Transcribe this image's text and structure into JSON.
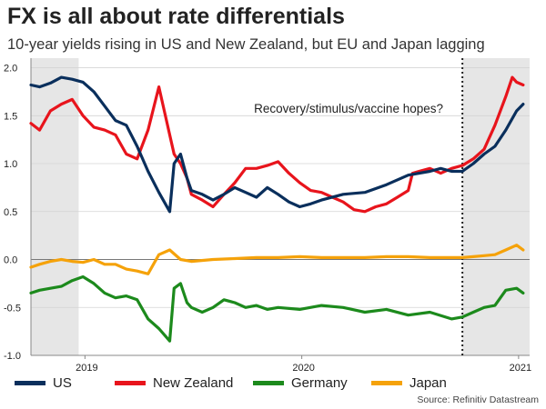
{
  "title": "FX is all about rate differentials",
  "subtitle": "10-year yields rising in US and New Zealand, but EU and Japan lagging",
  "source": "Source: Refinitiv Datastream",
  "chart_data": {
    "type": "line",
    "title": "FX is all about rate differentials",
    "xlabel": "",
    "ylabel": "",
    "ylim": [
      -1.0,
      2.1
    ],
    "xlim": [
      2018.86,
      2021.16
    ],
    "yticks": [
      -1.0,
      -0.5,
      0.0,
      0.5,
      1.0,
      1.5,
      2.0
    ],
    "ytick_labels": [
      "-1.0",
      "-0.5",
      "0.0",
      "0.5",
      "1.0",
      "1.5",
      "2.0"
    ],
    "xticks": [
      2019.0,
      2020.0,
      2021.0
    ],
    "xtick_labels": [
      "2019",
      "2020",
      "2021"
    ],
    "grid": "horizontal",
    "shaded_ranges": [
      [
        2018.86,
        2019.08
      ],
      [
        2020.85,
        2021.16
      ]
    ],
    "vline_x": 2020.85,
    "annotation": "Recovery/stimulus/vaccine hopes?",
    "series": [
      {
        "name": "US",
        "color": "#0a2f5c",
        "x": [
          2018.86,
          2018.9,
          2018.95,
          2019.0,
          2019.05,
          2019.1,
          2019.15,
          2019.2,
          2019.25,
          2019.3,
          2019.35,
          2019.4,
          2019.45,
          2019.5,
          2019.52,
          2019.55,
          2019.58,
          2019.6,
          2019.65,
          2019.7,
          2019.75,
          2019.8,
          2019.85,
          2019.9,
          2019.95,
          2020.0,
          2020.05,
          2020.1,
          2020.15,
          2020.2,
          2020.3,
          2020.4,
          2020.5,
          2020.6,
          2020.7,
          2020.75,
          2020.8,
          2020.85,
          2020.9,
          2020.95,
          2021.0,
          2021.05,
          2021.1,
          2021.13
        ],
        "values": [
          1.82,
          1.8,
          1.84,
          1.9,
          1.88,
          1.85,
          1.75,
          1.6,
          1.45,
          1.4,
          1.18,
          0.92,
          0.7,
          0.5,
          1.0,
          1.1,
          0.85,
          0.72,
          0.68,
          0.62,
          0.68,
          0.75,
          0.7,
          0.65,
          0.75,
          0.68,
          0.6,
          0.55,
          0.58,
          0.62,
          0.68,
          0.7,
          0.78,
          0.88,
          0.92,
          0.95,
          0.92,
          0.92,
          1.0,
          1.1,
          1.18,
          1.35,
          1.55,
          1.62
        ]
      },
      {
        "name": "New Zealand",
        "color": "#e8141c",
        "x": [
          2018.86,
          2018.9,
          2018.95,
          2019.0,
          2019.05,
          2019.1,
          2019.15,
          2019.2,
          2019.25,
          2019.3,
          2019.35,
          2019.4,
          2019.45,
          2019.5,
          2019.52,
          2019.55,
          2019.58,
          2019.6,
          2019.65,
          2019.7,
          2019.75,
          2019.8,
          2019.85,
          2019.9,
          2019.95,
          2020.0,
          2020.05,
          2020.1,
          2020.15,
          2020.2,
          2020.25,
          2020.3,
          2020.35,
          2020.4,
          2020.45,
          2020.5,
          2020.55,
          2020.6,
          2020.62,
          2020.65,
          2020.7,
          2020.75,
          2020.8,
          2020.85,
          2020.9,
          2020.95,
          2021.0,
          2021.05,
          2021.08,
          2021.1,
          2021.13
        ],
        "values": [
          1.42,
          1.35,
          1.55,
          1.62,
          1.67,
          1.5,
          1.38,
          1.35,
          1.3,
          1.1,
          1.05,
          1.35,
          1.8,
          1.3,
          1.1,
          1.0,
          0.85,
          0.68,
          0.62,
          0.55,
          0.68,
          0.8,
          0.95,
          0.95,
          0.98,
          1.02,
          0.9,
          0.8,
          0.72,
          0.7,
          0.65,
          0.6,
          0.52,
          0.5,
          0.55,
          0.58,
          0.65,
          0.72,
          0.9,
          0.92,
          0.95,
          0.9,
          0.95,
          0.98,
          1.05,
          1.15,
          1.4,
          1.7,
          1.9,
          1.85,
          1.82
        ]
      },
      {
        "name": "Germany",
        "color": "#1c8a1c",
        "x": [
          2018.86,
          2018.9,
          2018.95,
          2019.0,
          2019.05,
          2019.1,
          2019.15,
          2019.2,
          2019.25,
          2019.3,
          2019.35,
          2019.4,
          2019.45,
          2019.5,
          2019.52,
          2019.55,
          2019.58,
          2019.6,
          2019.65,
          2019.7,
          2019.75,
          2019.8,
          2019.85,
          2019.9,
          2019.95,
          2020.0,
          2020.1,
          2020.2,
          2020.3,
          2020.4,
          2020.5,
          2020.6,
          2020.7,
          2020.8,
          2020.85,
          2020.9,
          2020.95,
          2021.0,
          2021.05,
          2021.1,
          2021.13
        ],
        "values": [
          -0.35,
          -0.32,
          -0.3,
          -0.28,
          -0.22,
          -0.18,
          -0.25,
          -0.35,
          -0.4,
          -0.38,
          -0.42,
          -0.62,
          -0.72,
          -0.85,
          -0.3,
          -0.25,
          -0.45,
          -0.5,
          -0.55,
          -0.5,
          -0.42,
          -0.45,
          -0.5,
          -0.48,
          -0.52,
          -0.5,
          -0.52,
          -0.48,
          -0.5,
          -0.55,
          -0.52,
          -0.58,
          -0.55,
          -0.62,
          -0.6,
          -0.55,
          -0.5,
          -0.48,
          -0.32,
          -0.3,
          -0.35
        ]
      },
      {
        "name": "Japan",
        "color": "#f5a20a",
        "x": [
          2018.86,
          2018.9,
          2018.95,
          2019.0,
          2019.05,
          2019.1,
          2019.15,
          2019.2,
          2019.25,
          2019.3,
          2019.35,
          2019.4,
          2019.45,
          2019.5,
          2019.55,
          2019.6,
          2019.7,
          2019.8,
          2019.9,
          2020.0,
          2020.1,
          2020.2,
          2020.3,
          2020.4,
          2020.5,
          2020.6,
          2020.7,
          2020.8,
          2020.85,
          2020.9,
          2020.95,
          2021.0,
          2021.05,
          2021.1,
          2021.13
        ],
        "values": [
          -0.08,
          -0.05,
          -0.02,
          0.0,
          -0.02,
          -0.03,
          0.0,
          -0.05,
          -0.05,
          -0.1,
          -0.12,
          -0.15,
          0.05,
          0.1,
          0.0,
          -0.02,
          0.0,
          0.01,
          0.02,
          0.02,
          0.03,
          0.02,
          0.02,
          0.02,
          0.03,
          0.03,
          0.02,
          0.02,
          0.02,
          0.03,
          0.04,
          0.05,
          0.1,
          0.15,
          0.1
        ]
      }
    ]
  }
}
